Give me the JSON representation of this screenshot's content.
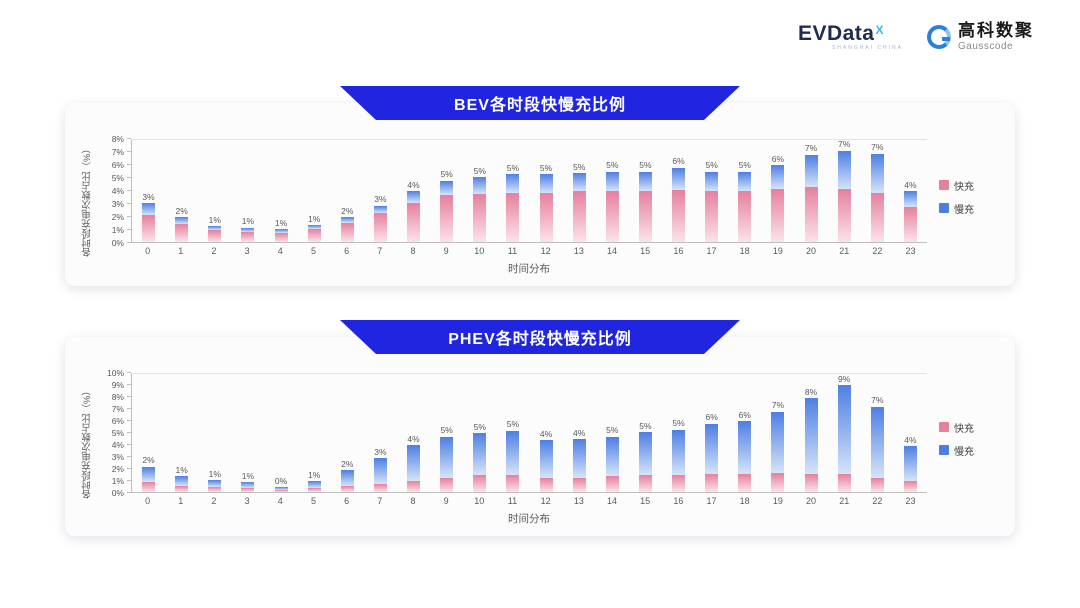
{
  "header": {
    "evdata": {
      "text": "EVData",
      "sup": "X",
      "subtext": "SHANGHAI CHINA"
    },
    "gausscode": {
      "cn": "高科数聚",
      "en": "Gausscode"
    }
  },
  "colors": {
    "banner_blue": "#2026df",
    "fast_pink": "#e5809d",
    "slow_blue": "#4d7fe3"
  },
  "chart_data": [
    {
      "type": "bar",
      "stacked": true,
      "title": "BEV各时段快慢充比例",
      "xlabel": "时间分布",
      "ylabel": "各时段充电次数占比（%）",
      "ylim": [
        0,
        8
      ],
      "ytick_step": 1,
      "grid": false,
      "legend_position": "right",
      "categories": [
        "0",
        "1",
        "2",
        "3",
        "4",
        "5",
        "6",
        "7",
        "8",
        "9",
        "10",
        "11",
        "12",
        "13",
        "14",
        "15",
        "16",
        "17",
        "18",
        "19",
        "20",
        "21",
        "22",
        "23"
      ],
      "total_labels": [
        "3%",
        "2%",
        "1%",
        "1%",
        "1%",
        "1%",
        "2%",
        "3%",
        "4%",
        "5%",
        "5%",
        "5%",
        "5%",
        "5%",
        "5%",
        "5%",
        "6%",
        "5%",
        "5%",
        "6%",
        "7%",
        "7%",
        "7%",
        "4%"
      ],
      "series": [
        {
          "name": "快充",
          "color_top": "#e5809d",
          "color_bottom": "#fbe3ea",
          "values": [
            2.1,
            1.4,
            0.9,
            0.8,
            0.7,
            1.0,
            1.5,
            2.2,
            3.0,
            3.6,
            3.7,
            3.8,
            3.8,
            3.9,
            3.9,
            3.9,
            4.0,
            3.9,
            3.9,
            4.1,
            4.2,
            4.2,
            3.8,
            2.7
          ]
        },
        {
          "name": "慢充",
          "color_top": "#4d7fe3",
          "color_bottom": "#d6e4f8",
          "values": [
            0.9,
            0.5,
            0.3,
            0.3,
            0.3,
            0.3,
            0.4,
            0.6,
            0.9,
            1.1,
            1.3,
            1.4,
            1.4,
            1.4,
            1.5,
            1.5,
            1.7,
            1.5,
            1.5,
            1.8,
            2.5,
            3.1,
            3.0,
            1.2
          ]
        }
      ]
    },
    {
      "type": "bar",
      "stacked": true,
      "title": "PHEV各时段快慢充比例",
      "xlabel": "时间分布",
      "ylabel": "各时段充电次数占比（%）",
      "ylim": [
        0,
        10
      ],
      "ytick_step": 1,
      "grid": false,
      "legend_position": "right",
      "categories": [
        "0",
        "1",
        "2",
        "3",
        "4",
        "5",
        "6",
        "7",
        "8",
        "9",
        "10",
        "11",
        "12",
        "13",
        "14",
        "15",
        "16",
        "17",
        "18",
        "19",
        "20",
        "21",
        "22",
        "23"
      ],
      "total_labels": [
        "2%",
        "1%",
        "1%",
        "1%",
        "0%",
        "1%",
        "2%",
        "3%",
        "4%",
        "5%",
        "5%",
        "5%",
        "4%",
        "4%",
        "5%",
        "5%",
        "5%",
        "6%",
        "6%",
        "7%",
        "8%",
        "9%",
        "7%",
        "4%"
      ],
      "series": [
        {
          "name": "快充",
          "color_top": "#e5809d",
          "color_bottom": "#fbe3ea",
          "values": [
            0.8,
            0.5,
            0.4,
            0.3,
            0.2,
            0.3,
            0.5,
            0.7,
            0.9,
            1.2,
            1.4,
            1.4,
            1.2,
            1.2,
            1.3,
            1.4,
            1.4,
            1.5,
            1.5,
            1.6,
            1.5,
            1.5,
            1.2,
            0.9
          ]
        },
        {
          "name": "慢充",
          "color_top": "#4d7fe3",
          "color_bottom": "#d6e4f8",
          "values": [
            1.3,
            0.8,
            0.6,
            0.5,
            0.2,
            0.6,
            1.3,
            2.1,
            3.0,
            3.4,
            3.5,
            3.7,
            3.1,
            3.2,
            3.3,
            3.6,
            3.8,
            4.2,
            4.4,
            5.1,
            6.3,
            7.4,
            5.9,
            2.9
          ]
        }
      ]
    }
  ]
}
